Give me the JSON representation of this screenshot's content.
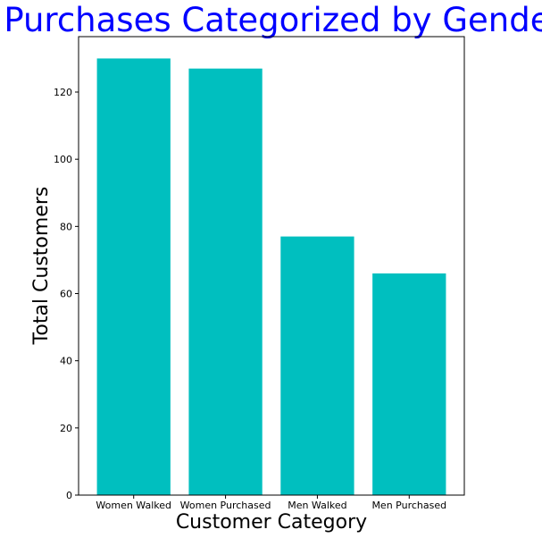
{
  "chart_data": {
    "type": "bar",
    "title": "Purchases Categorized by Gender",
    "xlabel": "Customer Category",
    "ylabel": "Total Customers",
    "categories": [
      "Women Walked",
      "Women Purchased",
      "Men Walked",
      "Men Purchased"
    ],
    "values": [
      130,
      127,
      77,
      66
    ],
    "ylim": [
      0,
      136.5
    ],
    "yticks": [
      0,
      20,
      40,
      60,
      80,
      100,
      120
    ],
    "bar_color": "#00bfbf",
    "title_color": "#0000ff",
    "grid": false,
    "legend": "none"
  }
}
